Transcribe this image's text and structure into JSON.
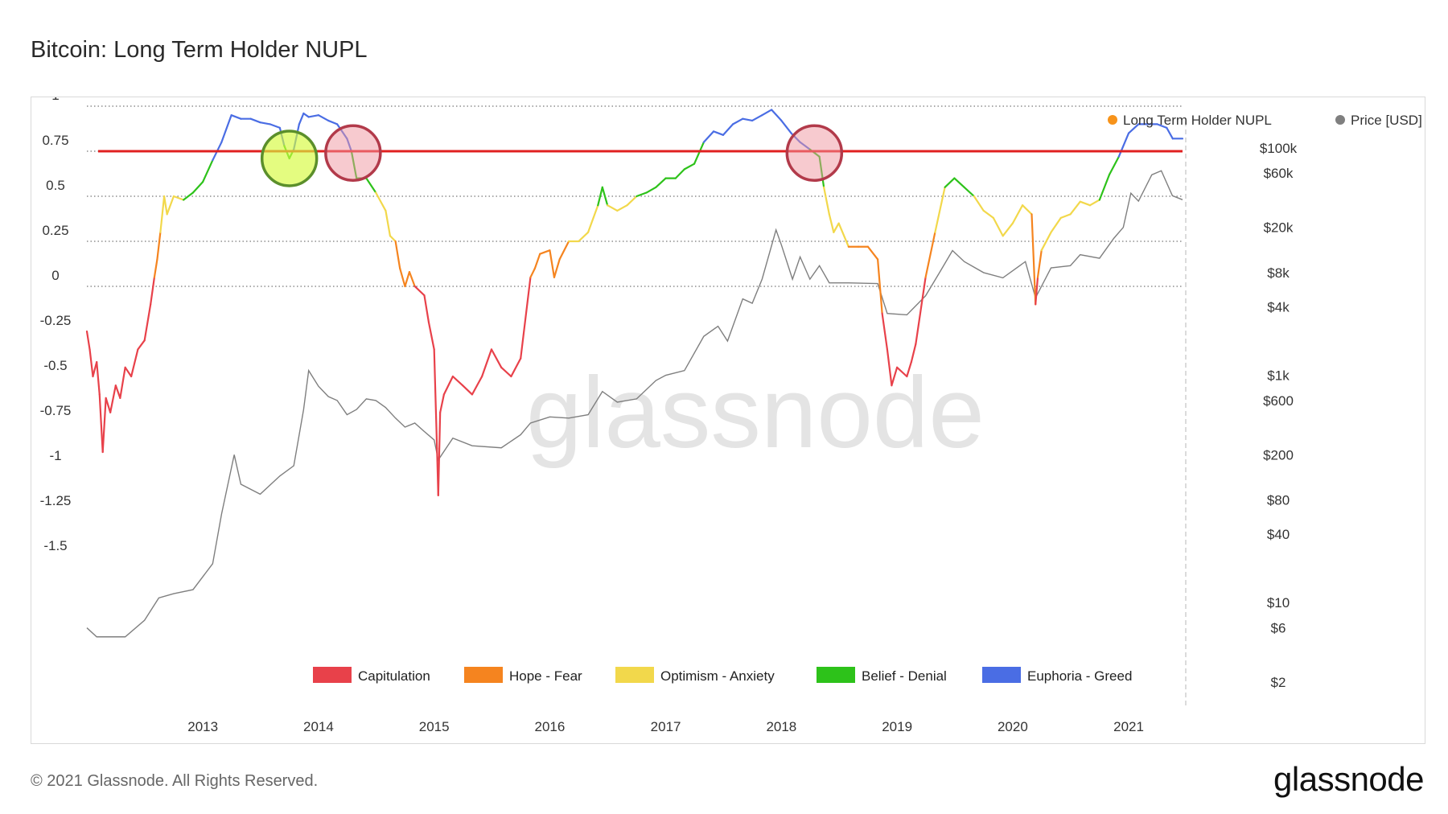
{
  "header": {
    "title": "Bitcoin: Long Term Holder NUPL"
  },
  "footer": {
    "copyright": "© 2021 Glassnode. All Rights Reserved.",
    "brand": "glassnode"
  },
  "watermark": "glassnode",
  "colors": {
    "Capitulation": "#e8414a",
    "Hope - Fear": "#f5841f",
    "Optimism - Anxiety": "#f2d84b",
    "Belief - Denial": "#2dc21a",
    "Euphoria - Greed": "#4a6de4",
    "price": "#7f7f7f",
    "threshold": "#e02020",
    "ltnupl_marker": "#f7931a"
  },
  "chart_data": {
    "type": "line",
    "title": "Bitcoin: Long Term Holder NUPL",
    "legend_top": [
      {
        "label": "Long Term Holder NUPL",
        "color": "#f7931a"
      },
      {
        "label": "Price [USD]",
        "color": "#7f7f7f"
      }
    ],
    "legend_bottom": [
      {
        "label": "Capitulation",
        "color": "#e8414a"
      },
      {
        "label": "Hope - Fear",
        "color": "#f5841f"
      },
      {
        "label": "Optimism - Anxiety",
        "color": "#f2d84b"
      },
      {
        "label": "Belief - Denial",
        "color": "#2dc21a"
      },
      {
        "label": "Euphoria - Greed",
        "color": "#4a6de4"
      }
    ],
    "x_ticks": [
      "2013",
      "2014",
      "2015",
      "2016",
      "2017",
      "2018",
      "2019",
      "2020",
      "2021"
    ],
    "x_range": [
      "2012-01-01",
      "2021-06-20"
    ],
    "y_left": {
      "ticks": [
        "1",
        "0.75",
        "0.5",
        "0.25",
        "0",
        "-0.25",
        "-0.5",
        "-0.75",
        "-1",
        "-1.25",
        "-1.5"
      ],
      "range": [
        -1.5,
        1.25
      ],
      "gridlines": [
        0,
        0.25,
        0.5,
        0.75,
        1
      ]
    },
    "y_right": {
      "scale": "log",
      "ticks": [
        "$100k",
        "$60k",
        "$20k",
        "$8k",
        "$4k",
        "$1k",
        "$600",
        "$200",
        "$80",
        "$40",
        "$10",
        "$6",
        "$2"
      ],
      "range": [
        2,
        150000
      ]
    },
    "threshold_line": 0.75,
    "zones": [
      {
        "name": "Capitulation",
        "range": [
          -1.5,
          0
        ]
      },
      {
        "name": "Hope - Fear",
        "range": [
          0,
          0.25
        ]
      },
      {
        "name": "Optimism - Anxiety",
        "range": [
          0.25,
          0.5
        ]
      },
      {
        "name": "Belief - Denial",
        "range": [
          0.5,
          0.75
        ]
      },
      {
        "name": "Euphoria - Greed",
        "range": [
          0.75,
          1.25
        ]
      }
    ],
    "annotations": [
      {
        "date": "2013-10-01",
        "value": 0.71,
        "style": "green-circle"
      },
      {
        "date": "2014-04-20",
        "value": 0.74,
        "style": "red-circle"
      },
      {
        "date": "2018-04-15",
        "value": 0.74,
        "style": "red-circle"
      }
    ],
    "series": [
      {
        "name": "Long Term Holder NUPL",
        "points": [
          [
            "2012-01-01",
            -0.25
          ],
          [
            "2012-01-10",
            -0.35
          ],
          [
            "2012-01-20",
            -0.5
          ],
          [
            "2012-02-01",
            -0.42
          ],
          [
            "2012-02-10",
            -0.6
          ],
          [
            "2012-02-20",
            -0.92
          ],
          [
            "2012-03-01",
            -0.62
          ],
          [
            "2012-03-15",
            -0.7
          ],
          [
            "2012-04-01",
            -0.55
          ],
          [
            "2012-04-15",
            -0.62
          ],
          [
            "2012-05-01",
            -0.45
          ],
          [
            "2012-05-20",
            -0.5
          ],
          [
            "2012-06-10",
            -0.35
          ],
          [
            "2012-07-01",
            -0.3
          ],
          [
            "2012-07-20",
            -0.1
          ],
          [
            "2012-08-01",
            0.05
          ],
          [
            "2012-08-10",
            0.15
          ],
          [
            "2012-08-20",
            0.3
          ],
          [
            "2012-09-01",
            0.5
          ],
          [
            "2012-09-10",
            0.4
          ],
          [
            "2012-10-01",
            0.5
          ],
          [
            "2012-11-01",
            0.48
          ],
          [
            "2012-12-01",
            0.52
          ],
          [
            "2013-01-01",
            0.58
          ],
          [
            "2013-02-01",
            0.7
          ],
          [
            "2013-03-01",
            0.8
          ],
          [
            "2013-04-01",
            0.95
          ],
          [
            "2013-05-01",
            0.93
          ],
          [
            "2013-06-01",
            0.93
          ],
          [
            "2013-07-01",
            0.91
          ],
          [
            "2013-08-01",
            0.9
          ],
          [
            "2013-09-01",
            0.88
          ],
          [
            "2013-09-15",
            0.78
          ],
          [
            "2013-10-01",
            0.71
          ],
          [
            "2013-10-15",
            0.76
          ],
          [
            "2013-11-01",
            0.9
          ],
          [
            "2013-11-15",
            0.96
          ],
          [
            "2013-12-01",
            0.94
          ],
          [
            "2014-01-01",
            0.95
          ],
          [
            "2014-02-01",
            0.92
          ],
          [
            "2014-03-01",
            0.9
          ],
          [
            "2014-04-01",
            0.82
          ],
          [
            "2014-04-15",
            0.75
          ],
          [
            "2014-05-01",
            0.6
          ],
          [
            "2014-06-01",
            0.6
          ],
          [
            "2014-07-01",
            0.52
          ],
          [
            "2014-08-01",
            0.42
          ],
          [
            "2014-08-15",
            0.28
          ],
          [
            "2014-09-01",
            0.25
          ],
          [
            "2014-09-15",
            0.1
          ],
          [
            "2014-10-01",
            0.0
          ],
          [
            "2014-10-15",
            0.08
          ],
          [
            "2014-11-01",
            0.0
          ],
          [
            "2014-12-01",
            -0.05
          ],
          [
            "2014-12-15",
            -0.2
          ],
          [
            "2015-01-01",
            -0.35
          ],
          [
            "2015-01-10",
            -0.9
          ],
          [
            "2015-01-14",
            -1.16
          ],
          [
            "2015-01-20",
            -0.7
          ],
          [
            "2015-02-01",
            -0.6
          ],
          [
            "2015-03-01",
            -0.5
          ],
          [
            "2015-04-01",
            -0.55
          ],
          [
            "2015-05-01",
            -0.6
          ],
          [
            "2015-06-01",
            -0.5
          ],
          [
            "2015-07-01",
            -0.35
          ],
          [
            "2015-08-01",
            -0.45
          ],
          [
            "2015-09-01",
            -0.5
          ],
          [
            "2015-10-01",
            -0.4
          ],
          [
            "2015-11-01",
            0.05
          ],
          [
            "2015-11-15",
            0.1
          ],
          [
            "2015-12-01",
            0.18
          ],
          [
            "2016-01-01",
            0.2
          ],
          [
            "2016-01-15",
            0.05
          ],
          [
            "2016-02-01",
            0.15
          ],
          [
            "2016-03-01",
            0.25
          ],
          [
            "2016-04-01",
            0.25
          ],
          [
            "2016-05-01",
            0.3
          ],
          [
            "2016-06-01",
            0.45
          ],
          [
            "2016-06-15",
            0.55
          ],
          [
            "2016-07-01",
            0.45
          ],
          [
            "2016-08-01",
            0.42
          ],
          [
            "2016-09-01",
            0.45
          ],
          [
            "2016-10-01",
            0.5
          ],
          [
            "2016-11-01",
            0.52
          ],
          [
            "2016-12-01",
            0.55
          ],
          [
            "2017-01-01",
            0.6
          ],
          [
            "2017-02-01",
            0.6
          ],
          [
            "2017-03-01",
            0.65
          ],
          [
            "2017-04-01",
            0.68
          ],
          [
            "2017-05-01",
            0.8
          ],
          [
            "2017-06-01",
            0.86
          ],
          [
            "2017-07-01",
            0.84
          ],
          [
            "2017-08-01",
            0.9
          ],
          [
            "2017-09-01",
            0.93
          ],
          [
            "2017-10-01",
            0.92
          ],
          [
            "2017-11-01",
            0.95
          ],
          [
            "2017-12-01",
            0.98
          ],
          [
            "2018-01-01",
            0.92
          ],
          [
            "2018-02-01",
            0.85
          ],
          [
            "2018-03-01",
            0.8
          ],
          [
            "2018-04-01",
            0.76
          ],
          [
            "2018-05-01",
            0.72
          ],
          [
            "2018-05-15",
            0.55
          ],
          [
            "2018-06-01",
            0.4
          ],
          [
            "2018-06-15",
            0.3
          ],
          [
            "2018-07-01",
            0.35
          ],
          [
            "2018-08-01",
            0.22
          ],
          [
            "2018-09-01",
            0.22
          ],
          [
            "2018-10-01",
            0.22
          ],
          [
            "2018-11-01",
            0.15
          ],
          [
            "2018-11-15",
            -0.15
          ],
          [
            "2018-12-01",
            -0.35
          ],
          [
            "2018-12-15",
            -0.55
          ],
          [
            "2019-01-01",
            -0.45
          ],
          [
            "2019-02-01",
            -0.5
          ],
          [
            "2019-02-15",
            -0.42
          ],
          [
            "2019-03-01",
            -0.32
          ],
          [
            "2019-04-01",
            0.05
          ],
          [
            "2019-05-01",
            0.3
          ],
          [
            "2019-06-01",
            0.55
          ],
          [
            "2019-07-01",
            0.6
          ],
          [
            "2019-08-01",
            0.55
          ],
          [
            "2019-09-01",
            0.5
          ],
          [
            "2019-10-01",
            0.42
          ],
          [
            "2019-11-01",
            0.38
          ],
          [
            "2019-12-01",
            0.28
          ],
          [
            "2020-01-01",
            0.35
          ],
          [
            "2020-02-01",
            0.45
          ],
          [
            "2020-03-01",
            0.4
          ],
          [
            "2020-03-13",
            -0.1
          ],
          [
            "2020-03-20",
            0.05
          ],
          [
            "2020-04-01",
            0.2
          ],
          [
            "2020-05-01",
            0.3
          ],
          [
            "2020-06-01",
            0.38
          ],
          [
            "2020-07-01",
            0.4
          ],
          [
            "2020-08-01",
            0.47
          ],
          [
            "2020-09-01",
            0.45
          ],
          [
            "2020-10-01",
            0.48
          ],
          [
            "2020-11-01",
            0.62
          ],
          [
            "2020-12-01",
            0.72
          ],
          [
            "2021-01-01",
            0.85
          ],
          [
            "2021-02-01",
            0.9
          ],
          [
            "2021-03-01",
            0.9
          ],
          [
            "2021-04-01",
            0.9
          ],
          [
            "2021-05-01",
            0.88
          ],
          [
            "2021-05-20",
            0.82
          ],
          [
            "2021-06-20",
            0.82
          ]
        ]
      },
      {
        "name": "Price [USD]",
        "points": [
          [
            "2012-01-01",
            6
          ],
          [
            "2012-02-01",
            5
          ],
          [
            "2012-03-01",
            5
          ],
          [
            "2012-05-01",
            5
          ],
          [
            "2012-07-01",
            7
          ],
          [
            "2012-08-15",
            11
          ],
          [
            "2012-10-01",
            12
          ],
          [
            "2012-12-01",
            13
          ],
          [
            "2013-02-01",
            22
          ],
          [
            "2013-03-01",
            60
          ],
          [
            "2013-04-10",
            200
          ],
          [
            "2013-05-01",
            110
          ],
          [
            "2013-07-01",
            90
          ],
          [
            "2013-09-01",
            130
          ],
          [
            "2013-10-15",
            160
          ],
          [
            "2013-11-15",
            500
          ],
          [
            "2013-12-01",
            1100
          ],
          [
            "2014-01-01",
            800
          ],
          [
            "2014-02-01",
            650
          ],
          [
            "2014-03-01",
            600
          ],
          [
            "2014-04-01",
            450
          ],
          [
            "2014-05-01",
            500
          ],
          [
            "2014-06-01",
            620
          ],
          [
            "2014-07-01",
            600
          ],
          [
            "2014-08-01",
            520
          ],
          [
            "2014-09-01",
            420
          ],
          [
            "2014-10-01",
            350
          ],
          [
            "2014-11-01",
            380
          ],
          [
            "2014-12-01",
            320
          ],
          [
            "2015-01-01",
            270
          ],
          [
            "2015-01-14",
            180
          ],
          [
            "2015-03-01",
            280
          ],
          [
            "2015-05-01",
            240
          ],
          [
            "2015-08-01",
            230
          ],
          [
            "2015-10-01",
            300
          ],
          [
            "2015-11-01",
            380
          ],
          [
            "2016-01-01",
            430
          ],
          [
            "2016-03-01",
            420
          ],
          [
            "2016-05-01",
            450
          ],
          [
            "2016-06-15",
            720
          ],
          [
            "2016-08-01",
            580
          ],
          [
            "2016-10-01",
            620
          ],
          [
            "2016-12-01",
            900
          ],
          [
            "2017-01-01",
            1000
          ],
          [
            "2017-03-01",
            1100
          ],
          [
            "2017-05-01",
            2200
          ],
          [
            "2017-06-15",
            2700
          ],
          [
            "2017-07-15",
            2000
          ],
          [
            "2017-09-01",
            4700
          ],
          [
            "2017-10-01",
            4300
          ],
          [
            "2017-11-01",
            7000
          ],
          [
            "2017-12-15",
            19000
          ],
          [
            "2018-01-01",
            14000
          ],
          [
            "2018-02-05",
            7000
          ],
          [
            "2018-03-01",
            11000
          ],
          [
            "2018-04-01",
            7000
          ],
          [
            "2018-05-01",
            9200
          ],
          [
            "2018-06-01",
            6500
          ],
          [
            "2018-08-01",
            6500
          ],
          [
            "2018-11-01",
            6400
          ],
          [
            "2018-12-01",
            3500
          ],
          [
            "2019-02-01",
            3400
          ],
          [
            "2019-04-01",
            5000
          ],
          [
            "2019-05-15",
            8000
          ],
          [
            "2019-06-25",
            12500
          ],
          [
            "2019-08-01",
            10000
          ],
          [
            "2019-10-01",
            8000
          ],
          [
            "2019-12-01",
            7200
          ],
          [
            "2020-02-10",
            10000
          ],
          [
            "2020-03-13",
            4800
          ],
          [
            "2020-05-01",
            8800
          ],
          [
            "2020-07-01",
            9200
          ],
          [
            "2020-08-01",
            11500
          ],
          [
            "2020-10-01",
            10700
          ],
          [
            "2020-11-15",
            16000
          ],
          [
            "2020-12-15",
            20000
          ],
          [
            "2021-01-08",
            40000
          ],
          [
            "2021-02-01",
            34000
          ],
          [
            "2021-03-15",
            58000
          ],
          [
            "2021-04-14",
            63000
          ],
          [
            "2021-05-19",
            38000
          ],
          [
            "2021-06-20",
            35000
          ]
        ]
      }
    ]
  }
}
